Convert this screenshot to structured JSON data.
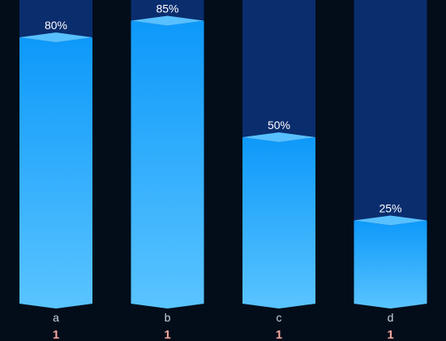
{
  "chart_data": {
    "type": "bar",
    "categories": [
      "a",
      "b",
      "c",
      "d"
    ],
    "values": [
      80,
      85,
      50,
      25
    ],
    "value_labels": [
      "80%",
      "85%",
      "50%",
      "25%"
    ],
    "sublabels": [
      "1",
      "1",
      "1",
      "1"
    ],
    "ylim": [
      0,
      100
    ],
    "background_max": 100,
    "grid": false,
    "legend": "none",
    "colors": {
      "background": "#030d1a",
      "track": "#0a2d6e",
      "bar_top": "#0d99fa",
      "bar_bottom": "#5ac4ff",
      "cap": "#58c0ff",
      "value_label": "#ffffff",
      "category_label": "#c8d2e0",
      "sublabel": "#f6a8a0"
    }
  }
}
